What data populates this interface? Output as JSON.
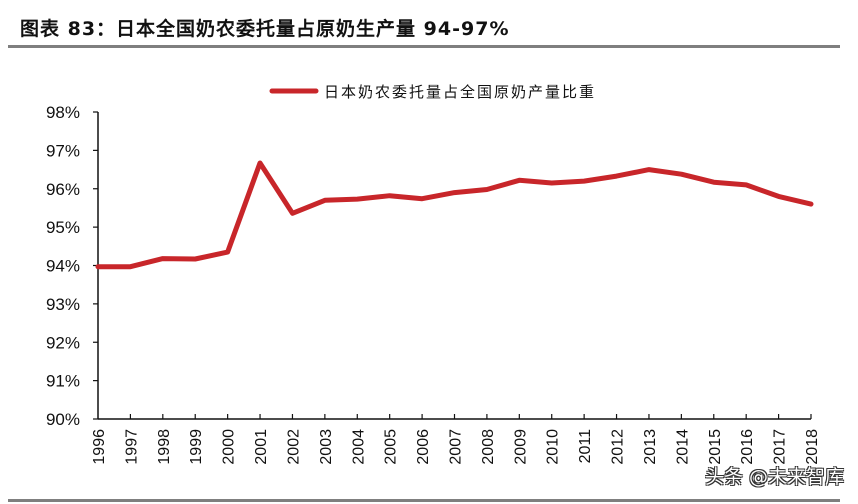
{
  "header": {
    "title": "图表 83：日本全国奶农委托量占原奶生产量 94-97%"
  },
  "watermark": "头条 @未来智库",
  "colors": {
    "series": "#C8262A",
    "axis": "#111111",
    "rule": "#7F7F7F"
  },
  "chart_data": {
    "type": "line",
    "title": "日本全国奶农委托量占原奶生产量 94-97%",
    "xlabel": "",
    "ylabel": "",
    "ylim": [
      90,
      98
    ],
    "y_ticks": [
      "90%",
      "91%",
      "92%",
      "93%",
      "94%",
      "95%",
      "96%",
      "97%",
      "98%"
    ],
    "grid": false,
    "legend_position": "top-center",
    "categories": [
      "1996",
      "1997",
      "1998",
      "1999",
      "2000",
      "2001",
      "2002",
      "2003",
      "2004",
      "2005",
      "2006",
      "2007",
      "2008",
      "2009",
      "2010",
      "2011",
      "2012",
      "2013",
      "2014",
      "2015",
      "2016",
      "2017",
      "2018"
    ],
    "series": [
      {
        "name": "日本奶农委托量占全国原奶产量比重",
        "unit": "%",
        "values": [
          93.97,
          93.97,
          94.18,
          94.17,
          94.35,
          96.67,
          95.36,
          95.7,
          95.73,
          95.82,
          95.74,
          95.9,
          95.98,
          96.22,
          96.15,
          96.2,
          96.33,
          96.5,
          96.38,
          96.17,
          96.1,
          95.8,
          95.6
        ]
      }
    ]
  }
}
